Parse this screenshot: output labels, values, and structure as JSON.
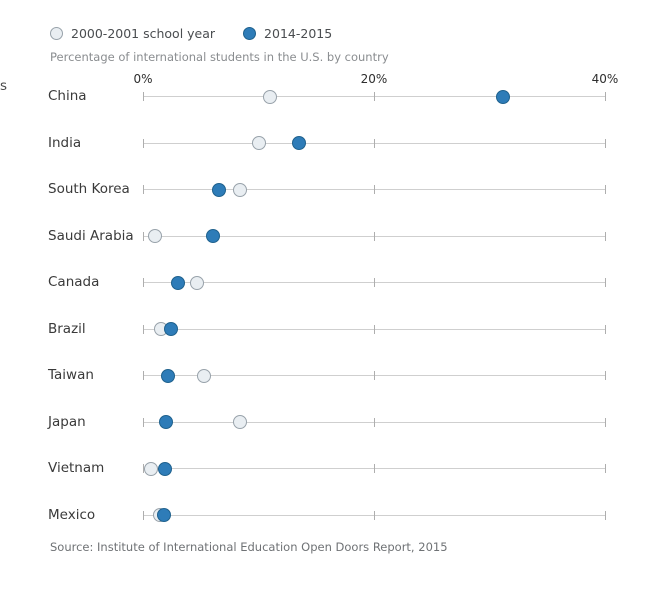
{
  "edge_fragment": "s",
  "legend": {
    "items": [
      {
        "label": "2000-2001 school year",
        "style": "open-circle"
      },
      {
        "label": "2014-2015",
        "style": "filled-circle"
      }
    ]
  },
  "subtitle": "Percentage of international students in the U.S. by country",
  "source": "Source: Institute of International Education Open Doors Report, 2015",
  "colors": {
    "filled_dot": "#2e7cb8",
    "filled_dot_border": "#1f618d",
    "open_dot_fill": "#e9eef2",
    "open_dot_border": "#98a2aa",
    "gridline": "#cfcfcf",
    "tick": "#aeaeae"
  },
  "chart_data": {
    "type": "scatter",
    "title": "Percentage of international students in the U.S. by country",
    "categories": [
      "China",
      "India",
      "South Korea",
      "Saudi Arabia",
      "Canada",
      "Brazil",
      "Taiwan",
      "Japan",
      "Vietnam",
      "Mexico"
    ],
    "series": [
      {
        "name": "2000-2001 school year",
        "marker": "open-circle",
        "values": [
          11.0,
          10.0,
          8.4,
          1.0,
          4.7,
          1.6,
          5.3,
          8.4,
          0.7,
          1.5
        ]
      },
      {
        "name": "2014-2015",
        "marker": "filled-circle",
        "values": [
          31.2,
          13.5,
          6.6,
          6.1,
          3.0,
          2.4,
          2.2,
          2.0,
          1.9,
          1.8
        ]
      }
    ],
    "xlabel": "",
    "ylabel": "",
    "xlim": [
      0,
      40
    ],
    "x_ticks": [
      "0%",
      "20%",
      "40%"
    ],
    "grid": "per-row-horizontal-lines-with-ticks",
    "legend_position": "top-left"
  }
}
